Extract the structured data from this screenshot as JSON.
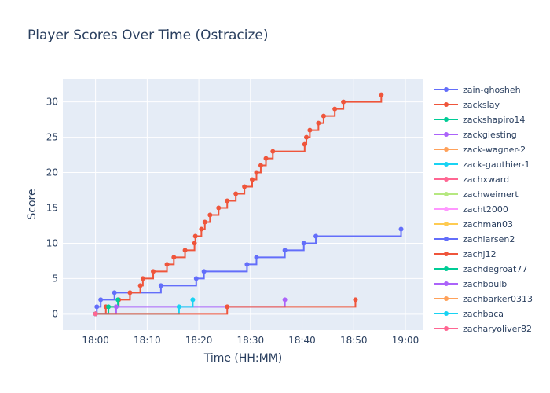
{
  "chart_data": {
    "type": "line",
    "line_shape": "step-after",
    "title": "Player Scores Over Time (Ostracize)",
    "xlabel": "Time (HH:MM)",
    "ylabel": "Score",
    "x_ticks": [
      "18:00",
      "18:10",
      "18:20",
      "18:30",
      "18:40",
      "18:50",
      "19:00"
    ],
    "xlim": [
      "17:53:40",
      "19:03:30"
    ],
    "y_ticks": [
      0,
      5,
      10,
      15,
      20,
      25,
      30
    ],
    "ylim": [
      -2.3,
      33.3
    ],
    "grid": true,
    "legend_position": "right",
    "series": [
      {
        "name": "zain-ghosheh",
        "color": "#636efa",
        "points": [
          [
            "18:00:00",
            0
          ],
          [
            "18:00:15",
            1
          ],
          [
            "18:01:00",
            2
          ],
          [
            "18:03:40",
            3
          ],
          [
            "18:12:40",
            4
          ],
          [
            "18:19:30",
            5
          ],
          [
            "18:21:00",
            6
          ],
          [
            "18:29:20",
            7
          ],
          [
            "18:31:10",
            8
          ],
          [
            "18:36:40",
            9
          ],
          [
            "18:40:20",
            10
          ],
          [
            "18:42:40",
            11
          ],
          [
            "18:59:10",
            12
          ]
        ]
      },
      {
        "name": "zackslay",
        "color": "#ef553b",
        "points": [
          [
            "18:00:00",
            0
          ],
          [
            "18:02:00",
            1
          ],
          [
            "18:04:30",
            2
          ],
          [
            "18:06:40",
            3
          ],
          [
            "18:08:40",
            4
          ],
          [
            "18:09:10",
            5
          ],
          [
            "18:11:10",
            6
          ],
          [
            "18:13:50",
            7
          ],
          [
            "18:15:10",
            8
          ],
          [
            "18:17:20",
            9
          ],
          [
            "18:19:10",
            10
          ],
          [
            "18:19:20",
            11
          ],
          [
            "18:20:30",
            12
          ],
          [
            "18:21:10",
            13
          ],
          [
            "18:22:10",
            14
          ],
          [
            "18:23:50",
            15
          ],
          [
            "18:25:30",
            16
          ],
          [
            "18:27:10",
            17
          ],
          [
            "18:28:50",
            18
          ],
          [
            "18:30:20",
            19
          ],
          [
            "18:31:10",
            20
          ],
          [
            "18:32:00",
            21
          ],
          [
            "18:33:00",
            22
          ],
          [
            "18:34:20",
            23
          ],
          [
            "18:40:30",
            24
          ],
          [
            "18:40:50",
            25
          ],
          [
            "18:41:30",
            26
          ],
          [
            "18:43:10",
            27
          ],
          [
            "18:44:10",
            28
          ],
          [
            "18:46:20",
            29
          ],
          [
            "18:48:00",
            30
          ],
          [
            "18:55:20",
            31
          ]
        ]
      },
      {
        "name": "zackshapiro14",
        "color": "#00cc96",
        "points": [
          [
            "18:00:00",
            0
          ],
          [
            "18:02:30",
            1
          ],
          [
            "18:04:20",
            2
          ]
        ]
      },
      {
        "name": "zackgiesting",
        "color": "#ab63fa",
        "points": [
          [
            "18:00:00",
            0
          ],
          [
            "18:04:00",
            1
          ],
          [
            "18:36:40",
            2
          ]
        ]
      },
      {
        "name": "zack-wagner-2",
        "color": "#ffa15a",
        "points": [
          [
            "18:00:00",
            0
          ]
        ]
      },
      {
        "name": "zack-gauthier-1",
        "color": "#19d3f3",
        "points": [
          [
            "18:00:00",
            0
          ],
          [
            "18:16:10",
            1
          ],
          [
            "18:18:50",
            2
          ]
        ]
      },
      {
        "name": "zachxward",
        "color": "#ff6692",
        "points": [
          [
            "18:00:00",
            0
          ]
        ]
      },
      {
        "name": "zachweimert",
        "color": "#b6e880",
        "points": [
          [
            "18:00:00",
            0
          ]
        ]
      },
      {
        "name": "zacht2000",
        "color": "#ff97ff",
        "points": [
          [
            "18:00:00",
            0
          ]
        ]
      },
      {
        "name": "zachman03",
        "color": "#fecb52",
        "points": [
          [
            "18:00:00",
            0
          ]
        ]
      },
      {
        "name": "zachlarsen2",
        "color": "#636efa",
        "points": [
          [
            "18:00:00",
            0
          ]
        ]
      },
      {
        "name": "zachj12",
        "color": "#ef553b",
        "points": [
          [
            "18:00:00",
            0
          ],
          [
            "18:25:30",
            1
          ],
          [
            "18:50:20",
            2
          ]
        ]
      },
      {
        "name": "zachdegroat77",
        "color": "#00cc96",
        "points": [
          [
            "18:00:00",
            0
          ]
        ]
      },
      {
        "name": "zachboulb",
        "color": "#ab63fa",
        "points": [
          [
            "18:00:00",
            0
          ]
        ]
      },
      {
        "name": "zachbarker0313",
        "color": "#ffa15a",
        "points": [
          [
            "18:00:00",
            0
          ]
        ]
      },
      {
        "name": "zachbaca",
        "color": "#19d3f3",
        "points": [
          [
            "18:00:00",
            0
          ]
        ]
      },
      {
        "name": "zacharyoliver82",
        "color": "#ff6692",
        "points": [
          [
            "18:00:00",
            0
          ]
        ]
      }
    ]
  }
}
